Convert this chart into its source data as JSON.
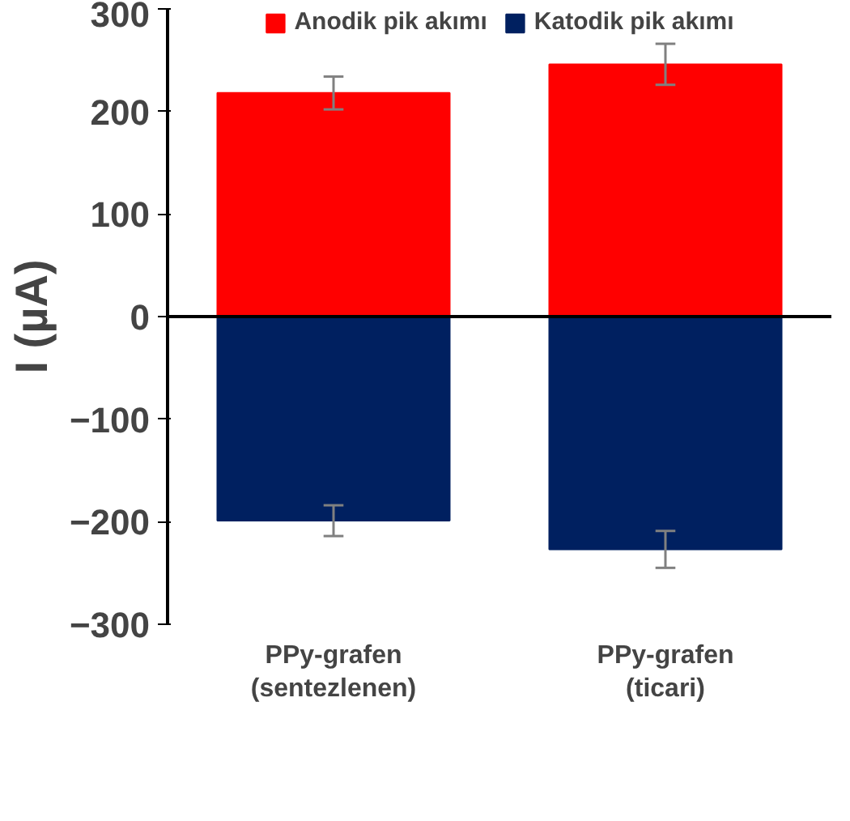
{
  "chart_data": {
    "type": "bar",
    "ylabel": "I (µA)",
    "categories": [
      "PPy-grafen\n(sentezlenen)",
      "PPy-grafen\n(ticari)"
    ],
    "series": [
      {
        "name": "Anodik pik akımı",
        "color": "#ff0000",
        "values": [
          218,
          246
        ],
        "errors": [
          16,
          20
        ]
      },
      {
        "name": "Katodik pik akımı",
        "color": "#002060",
        "values": [
          -199,
          -227
        ],
        "errors": [
          15,
          18
        ]
      }
    ],
    "ylim": [
      -300,
      300
    ],
    "yticks": [
      -300,
      -200,
      -100,
      0,
      100,
      200,
      300
    ],
    "stacked": true,
    "legend": "top"
  }
}
